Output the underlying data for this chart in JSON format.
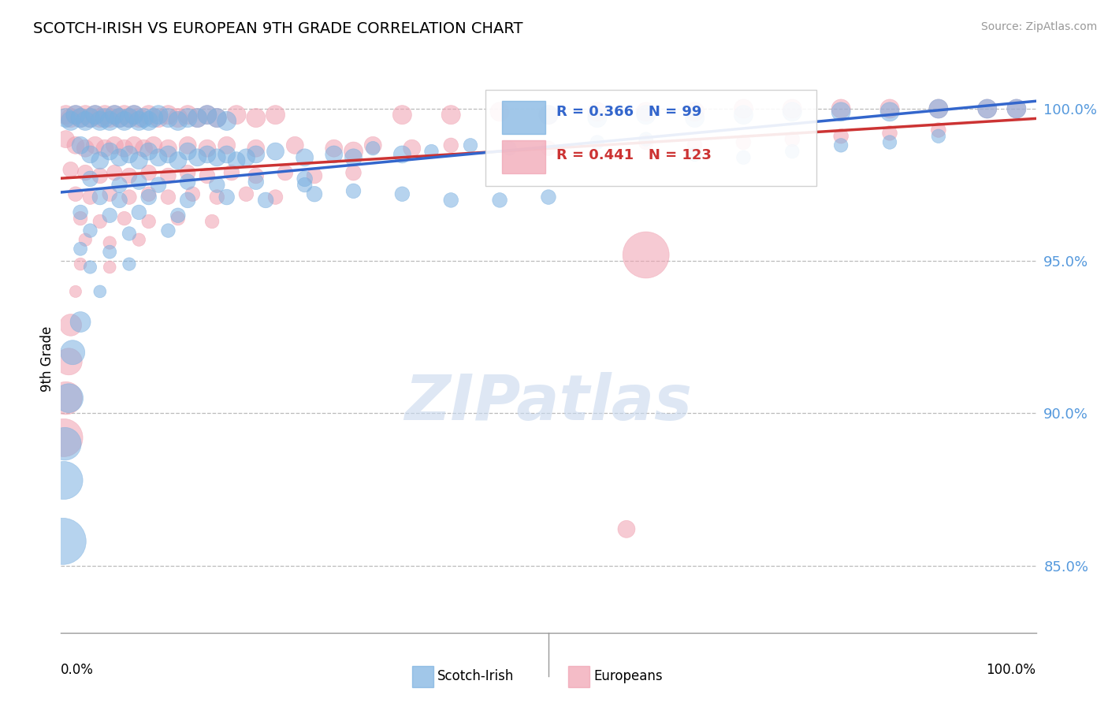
{
  "title": "SCOTCH-IRISH VS EUROPEAN 9TH GRADE CORRELATION CHART",
  "source": "Source: ZipAtlas.com",
  "ylabel": "9th Grade",
  "xlim": [
    0.0,
    1.0
  ],
  "ylim": [
    0.828,
    1.008
  ],
  "yticks": [
    0.85,
    0.9,
    0.95,
    1.0
  ],
  "ytick_labels": [
    "85.0%",
    "90.0%",
    "95.0%",
    "100.0%"
  ],
  "blue_color": "#7ab0e0",
  "pink_color": "#f0a0b0",
  "blue_line_color": "#3366cc",
  "pink_line_color": "#cc3333",
  "R_blue": 0.366,
  "N_blue": 99,
  "R_pink": 0.441,
  "N_pink": 123,
  "legend_label_blue": "Scotch-Irish",
  "legend_label_pink": "Europeans",
  "blue_points": [
    [
      0.005,
      0.997
    ],
    [
      0.01,
      0.996
    ],
    [
      0.015,
      0.998
    ],
    [
      0.02,
      0.997
    ],
    [
      0.025,
      0.996
    ],
    [
      0.03,
      0.997
    ],
    [
      0.035,
      0.998
    ],
    [
      0.04,
      0.996
    ],
    [
      0.045,
      0.997
    ],
    [
      0.05,
      0.996
    ],
    [
      0.055,
      0.998
    ],
    [
      0.06,
      0.997
    ],
    [
      0.065,
      0.996
    ],
    [
      0.07,
      0.997
    ],
    [
      0.075,
      0.998
    ],
    [
      0.08,
      0.996
    ],
    [
      0.085,
      0.997
    ],
    [
      0.09,
      0.996
    ],
    [
      0.095,
      0.997
    ],
    [
      0.1,
      0.998
    ],
    [
      0.11,
      0.997
    ],
    [
      0.12,
      0.996
    ],
    [
      0.13,
      0.997
    ],
    [
      0.14,
      0.997
    ],
    [
      0.15,
      0.998
    ],
    [
      0.16,
      0.997
    ],
    [
      0.17,
      0.996
    ],
    [
      0.5,
      0.998
    ],
    [
      0.55,
      0.997
    ],
    [
      0.6,
      0.998
    ],
    [
      0.65,
      0.997
    ],
    [
      0.7,
      0.998
    ],
    [
      0.75,
      0.999
    ],
    [
      0.8,
      0.999
    ],
    [
      0.85,
      0.999
    ],
    [
      0.9,
      1.0
    ],
    [
      0.95,
      1.0
    ],
    [
      0.98,
      1.0
    ],
    [
      0.02,
      0.988
    ],
    [
      0.03,
      0.985
    ],
    [
      0.04,
      0.983
    ],
    [
      0.05,
      0.986
    ],
    [
      0.06,
      0.984
    ],
    [
      0.07,
      0.985
    ],
    [
      0.08,
      0.983
    ],
    [
      0.09,
      0.986
    ],
    [
      0.1,
      0.984
    ],
    [
      0.11,
      0.985
    ],
    [
      0.12,
      0.983
    ],
    [
      0.13,
      0.986
    ],
    [
      0.14,
      0.984
    ],
    [
      0.15,
      0.985
    ],
    [
      0.16,
      0.984
    ],
    [
      0.17,
      0.985
    ],
    [
      0.18,
      0.983
    ],
    [
      0.19,
      0.984
    ],
    [
      0.2,
      0.985
    ],
    [
      0.22,
      0.986
    ],
    [
      0.25,
      0.984
    ],
    [
      0.28,
      0.985
    ],
    [
      0.3,
      0.984
    ],
    [
      0.35,
      0.985
    ],
    [
      0.03,
      0.977
    ],
    [
      0.06,
      0.975
    ],
    [
      0.08,
      0.976
    ],
    [
      0.1,
      0.975
    ],
    [
      0.13,
      0.976
    ],
    [
      0.16,
      0.975
    ],
    [
      0.2,
      0.976
    ],
    [
      0.25,
      0.977
    ],
    [
      0.04,
      0.971
    ],
    [
      0.06,
      0.97
    ],
    [
      0.09,
      0.971
    ],
    [
      0.13,
      0.97
    ],
    [
      0.17,
      0.971
    ],
    [
      0.21,
      0.97
    ],
    [
      0.26,
      0.972
    ],
    [
      0.02,
      0.966
    ],
    [
      0.05,
      0.965
    ],
    [
      0.08,
      0.966
    ],
    [
      0.12,
      0.965
    ],
    [
      0.03,
      0.96
    ],
    [
      0.07,
      0.959
    ],
    [
      0.11,
      0.96
    ],
    [
      0.02,
      0.954
    ],
    [
      0.05,
      0.953
    ],
    [
      0.03,
      0.948
    ],
    [
      0.07,
      0.949
    ],
    [
      0.04,
      0.94
    ],
    [
      0.02,
      0.93
    ],
    [
      0.012,
      0.92
    ],
    [
      0.008,
      0.905
    ],
    [
      0.004,
      0.89
    ],
    [
      0.003,
      0.878
    ],
    [
      0.002,
      0.858
    ],
    [
      0.25,
      0.975
    ],
    [
      0.3,
      0.973
    ],
    [
      0.35,
      0.972
    ],
    [
      0.4,
      0.97
    ],
    [
      0.45,
      0.97
    ],
    [
      0.5,
      0.971
    ],
    [
      0.32,
      0.987
    ],
    [
      0.38,
      0.986
    ],
    [
      0.42,
      0.988
    ],
    [
      0.46,
      0.987
    ],
    [
      0.55,
      0.989
    ],
    [
      0.6,
      0.99
    ],
    [
      0.65,
      0.985
    ],
    [
      0.7,
      0.984
    ],
    [
      0.75,
      0.986
    ],
    [
      0.8,
      0.988
    ],
    [
      0.85,
      0.989
    ],
    [
      0.9,
      0.991
    ]
  ],
  "blue_sizes": [
    300,
    300,
    300,
    300,
    300,
    300,
    300,
    300,
    300,
    300,
    300,
    300,
    300,
    300,
    300,
    300,
    300,
    300,
    300,
    300,
    300,
    300,
    300,
    300,
    300,
    300,
    300,
    300,
    300,
    300,
    300,
    300,
    300,
    300,
    300,
    300,
    300,
    300,
    250,
    250,
    250,
    250,
    250,
    250,
    250,
    250,
    250,
    250,
    250,
    250,
    250,
    250,
    250,
    250,
    250,
    250,
    250,
    250,
    250,
    250,
    250,
    250,
    200,
    200,
    200,
    200,
    200,
    200,
    200,
    200,
    200,
    200,
    200,
    200,
    200,
    200,
    200,
    180,
    180,
    180,
    180,
    160,
    160,
    160,
    150,
    150,
    140,
    140,
    130,
    350,
    500,
    700,
    900,
    1200,
    1800,
    180,
    180,
    180,
    180,
    180,
    180,
    160,
    160,
    160,
    160,
    160,
    160,
    160,
    160,
    160,
    160,
    160,
    160
  ],
  "pink_points": [
    [
      0.005,
      0.998
    ],
    [
      0.01,
      0.997
    ],
    [
      0.015,
      0.998
    ],
    [
      0.02,
      0.997
    ],
    [
      0.025,
      0.998
    ],
    [
      0.03,
      0.997
    ],
    [
      0.035,
      0.998
    ],
    [
      0.04,
      0.997
    ],
    [
      0.045,
      0.998
    ],
    [
      0.05,
      0.997
    ],
    [
      0.055,
      0.998
    ],
    [
      0.06,
      0.997
    ],
    [
      0.065,
      0.998
    ],
    [
      0.07,
      0.997
    ],
    [
      0.075,
      0.998
    ],
    [
      0.08,
      0.997
    ],
    [
      0.09,
      0.998
    ],
    [
      0.1,
      0.997
    ],
    [
      0.11,
      0.998
    ],
    [
      0.12,
      0.997
    ],
    [
      0.13,
      0.998
    ],
    [
      0.14,
      0.997
    ],
    [
      0.15,
      0.998
    ],
    [
      0.16,
      0.997
    ],
    [
      0.18,
      0.998
    ],
    [
      0.2,
      0.997
    ],
    [
      0.22,
      0.998
    ],
    [
      0.35,
      0.998
    ],
    [
      0.4,
      0.998
    ],
    [
      0.45,
      0.999
    ],
    [
      0.5,
      0.998
    ],
    [
      0.55,
      0.999
    ],
    [
      0.6,
      0.999
    ],
    [
      0.65,
      0.999
    ],
    [
      0.7,
      1.0
    ],
    [
      0.75,
      1.0
    ],
    [
      0.8,
      1.0
    ],
    [
      0.85,
      1.0
    ],
    [
      0.9,
      1.0
    ],
    [
      0.95,
      1.0
    ],
    [
      0.98,
      1.0
    ],
    [
      0.005,
      0.99
    ],
    [
      0.015,
      0.988
    ],
    [
      0.025,
      0.987
    ],
    [
      0.035,
      0.988
    ],
    [
      0.045,
      0.987
    ],
    [
      0.055,
      0.988
    ],
    [
      0.065,
      0.987
    ],
    [
      0.075,
      0.988
    ],
    [
      0.085,
      0.987
    ],
    [
      0.095,
      0.988
    ],
    [
      0.11,
      0.987
    ],
    [
      0.13,
      0.988
    ],
    [
      0.15,
      0.987
    ],
    [
      0.17,
      0.988
    ],
    [
      0.2,
      0.987
    ],
    [
      0.24,
      0.988
    ],
    [
      0.28,
      0.987
    ],
    [
      0.32,
      0.988
    ],
    [
      0.36,
      0.987
    ],
    [
      0.01,
      0.98
    ],
    [
      0.025,
      0.979
    ],
    [
      0.04,
      0.978
    ],
    [
      0.055,
      0.979
    ],
    [
      0.07,
      0.978
    ],
    [
      0.09,
      0.979
    ],
    [
      0.11,
      0.978
    ],
    [
      0.13,
      0.979
    ],
    [
      0.15,
      0.978
    ],
    [
      0.175,
      0.979
    ],
    [
      0.2,
      0.978
    ],
    [
      0.23,
      0.979
    ],
    [
      0.26,
      0.978
    ],
    [
      0.3,
      0.979
    ],
    [
      0.015,
      0.972
    ],
    [
      0.03,
      0.971
    ],
    [
      0.05,
      0.972
    ],
    [
      0.07,
      0.971
    ],
    [
      0.09,
      0.972
    ],
    [
      0.11,
      0.971
    ],
    [
      0.135,
      0.972
    ],
    [
      0.16,
      0.971
    ],
    [
      0.19,
      0.972
    ],
    [
      0.22,
      0.971
    ],
    [
      0.02,
      0.964
    ],
    [
      0.04,
      0.963
    ],
    [
      0.065,
      0.964
    ],
    [
      0.09,
      0.963
    ],
    [
      0.12,
      0.964
    ],
    [
      0.155,
      0.963
    ],
    [
      0.025,
      0.957
    ],
    [
      0.05,
      0.956
    ],
    [
      0.08,
      0.957
    ],
    [
      0.02,
      0.949
    ],
    [
      0.05,
      0.948
    ],
    [
      0.015,
      0.94
    ],
    [
      0.01,
      0.929
    ],
    [
      0.008,
      0.917
    ],
    [
      0.005,
      0.905
    ],
    [
      0.003,
      0.892
    ],
    [
      0.6,
      0.952
    ],
    [
      0.58,
      0.862
    ],
    [
      0.3,
      0.986
    ],
    [
      0.4,
      0.988
    ],
    [
      0.5,
      0.987
    ],
    [
      0.6,
      0.989
    ],
    [
      0.65,
      0.988
    ],
    [
      0.7,
      0.989
    ],
    [
      0.75,
      0.99
    ],
    [
      0.8,
      0.991
    ],
    [
      0.85,
      0.992
    ],
    [
      0.9,
      0.993
    ]
  ],
  "pink_sizes": [
    300,
    300,
    300,
    300,
    300,
    300,
    300,
    300,
    300,
    300,
    300,
    300,
    300,
    300,
    300,
    300,
    300,
    300,
    300,
    300,
    300,
    300,
    300,
    300,
    300,
    300,
    300,
    300,
    300,
    300,
    300,
    300,
    300,
    300,
    300,
    300,
    300,
    300,
    300,
    300,
    300,
    250,
    250,
    250,
    250,
    250,
    250,
    250,
    250,
    250,
    250,
    250,
    250,
    250,
    250,
    250,
    250,
    250,
    250,
    250,
    200,
    200,
    200,
    200,
    200,
    200,
    200,
    200,
    200,
    200,
    200,
    200,
    200,
    200,
    180,
    180,
    180,
    180,
    180,
    180,
    180,
    180,
    180,
    180,
    160,
    160,
    160,
    160,
    160,
    160,
    140,
    140,
    140,
    130,
    130,
    120,
    400,
    600,
    900,
    1200,
    1800,
    250,
    300,
    180,
    180,
    180,
    180,
    180,
    180,
    180,
    180,
    180,
    180
  ]
}
